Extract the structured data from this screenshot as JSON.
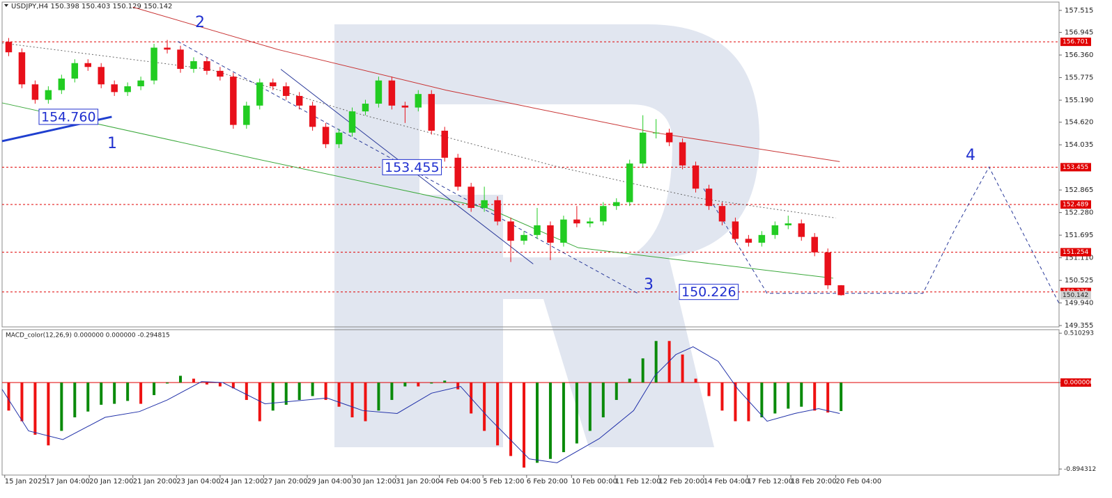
{
  "chart_data": [
    {
      "type": "candlestick",
      "title": "USDJPY,H4  150.398 150.403 150.129 150.142",
      "open": [
        156.7,
        156.43,
        155.6,
        155.2,
        155.45,
        155.75,
        156.15,
        156.05,
        155.6,
        155.4,
        155.55,
        155.7,
        156.55,
        156.5,
        156.0,
        156.2,
        155.95,
        155.8,
        154.55,
        155.05,
        155.65,
        155.55,
        155.3,
        155.05,
        154.5,
        154.05,
        154.35,
        154.9,
        155.1,
        155.7,
        155.05,
        155.0,
        155.35,
        154.4,
        153.7,
        152.95,
        152.4,
        152.6,
        152.05,
        151.55,
        151.7,
        151.95,
        151.5,
        152.1,
        152.0,
        152.05,
        152.45,
        152.55,
        153.55,
        154.35,
        154.35,
        154.1,
        153.5,
        152.9,
        152.45,
        152.05,
        151.6,
        151.5,
        151.7,
        151.95,
        152.0,
        151.65,
        151.25,
        150.398
      ],
      "high": [
        156.8,
        156.53,
        155.7,
        155.55,
        155.85,
        156.25,
        156.25,
        156.15,
        155.7,
        155.65,
        155.8,
        156.65,
        156.75,
        156.6,
        156.3,
        156.3,
        156.05,
        155.9,
        155.15,
        155.75,
        155.75,
        155.65,
        155.4,
        155.15,
        154.6,
        154.45,
        155.0,
        155.2,
        155.8,
        155.8,
        155.15,
        155.45,
        155.45,
        154.5,
        153.8,
        153.05,
        152.95,
        152.7,
        152.15,
        151.8,
        152.4,
        152.05,
        152.2,
        152.45,
        152.15,
        152.55,
        152.65,
        153.65,
        154.8,
        154.7,
        154.45,
        154.2,
        153.6,
        153.0,
        152.55,
        152.15,
        151.7,
        151.8,
        152.05,
        152.2,
        152.1,
        151.75,
        151.35,
        150.403
      ],
      "low": [
        156.33,
        155.5,
        155.1,
        155.1,
        155.35,
        155.65,
        155.95,
        155.5,
        155.3,
        155.3,
        155.45,
        155.6,
        156.4,
        155.9,
        155.9,
        155.85,
        155.7,
        154.45,
        154.45,
        154.95,
        155.45,
        155.2,
        154.95,
        154.4,
        153.95,
        153.95,
        154.25,
        154.8,
        155.0,
        154.95,
        154.6,
        154.9,
        154.3,
        153.6,
        152.85,
        152.3,
        152.3,
        151.95,
        151.0,
        151.45,
        151.6,
        151.05,
        151.4,
        151.9,
        151.9,
        151.95,
        152.35,
        152.45,
        153.45,
        154.2,
        154.0,
        153.4,
        152.8,
        152.35,
        151.95,
        151.5,
        151.4,
        151.4,
        151.6,
        151.85,
        151.55,
        151.15,
        150.3,
        150.129
      ],
      "close": [
        156.43,
        155.6,
        155.2,
        155.45,
        155.75,
        156.15,
        156.05,
        155.6,
        155.4,
        155.55,
        155.7,
        156.55,
        156.5,
        156.0,
        156.2,
        155.95,
        155.8,
        154.55,
        155.05,
        155.65,
        155.55,
        155.3,
        155.05,
        154.5,
        154.05,
        154.35,
        154.9,
        155.1,
        155.7,
        155.05,
        155.0,
        155.35,
        154.4,
        153.7,
        152.95,
        152.4,
        152.6,
        152.05,
        151.55,
        151.7,
        151.95,
        151.5,
        152.1,
        152.0,
        152.05,
        152.45,
        152.55,
        153.55,
        154.35,
        154.35,
        154.1,
        153.5,
        152.9,
        152.45,
        152.05,
        151.6,
        151.5,
        151.7,
        151.95,
        152.0,
        151.65,
        151.25,
        150.398,
        150.142
      ],
      "up_color": "#22cc22",
      "down_color": "#e8101a",
      "xlim": [
        -0.5,
        79.5
      ],
      "xticks": [
        {
          "value": -0.3,
          "label": "15 Jan 2025"
        },
        {
          "value": 2.8,
          "label": "17 Jan 04:00"
        },
        {
          "value": 6.1,
          "label": "20 Jan 12:00"
        },
        {
          "value": 9.4,
          "label": "21 Jan 20:00"
        },
        {
          "value": 12.7,
          "label": "23 Jan 04:00"
        },
        {
          "value": 16.0,
          "label": "24 Jan 12:00"
        },
        {
          "value": 19.3,
          "label": "27 Jan 20:00"
        },
        {
          "value": 22.6,
          "label": "29 Jan 04:00"
        },
        {
          "value": 26.0,
          "label": "30 Jan 12:00"
        },
        {
          "value": 29.3,
          "label": "31 Jan 20:00"
        },
        {
          "value": 32.6,
          "label": "4 Feb 04:00"
        },
        {
          "value": 35.9,
          "label": "5 Feb 12:00"
        },
        {
          "value": 39.2,
          "label": "6 Feb 20:00"
        },
        {
          "value": 42.6,
          "label": "10 Feb 00:00"
        },
        {
          "value": 45.9,
          "label": "11 Feb 12:00"
        },
        {
          "value": 49.2,
          "label": "12 Feb 20:00"
        },
        {
          "value": 52.6,
          "label": "14 Feb 04:00"
        },
        {
          "value": 55.9,
          "label": "17 Feb 12:00"
        },
        {
          "value": 59.2,
          "label": "18 Feb 20:00"
        },
        {
          "value": 62.6,
          "label": "20 Feb 04:00"
        }
      ],
      "ylim": [
        149.32,
        157.73
      ],
      "yticks": [
        157.515,
        156.945,
        {
          "value": 156.36,
          "label": "156.360"
        },
        155.775,
        {
          "value": 155.19,
          "label": "155.190"
        },
        {
          "value": 154.62,
          "label": "154.620"
        },
        154.035,
        152.865,
        {
          "value": 152.28,
          "label": "152.280"
        },
        151.695,
        {
          "value": 151.11,
          "label": "151.110"
        },
        150.525,
        {
          "value": 149.94,
          "label": "149.940"
        },
        149.355
      ],
      "levels": [
        156.701,
        153.455,
        152.489,
        151.254,
        150.226
      ],
      "level_color": "#e00000",
      "last_price": 150.142,
      "series": [
        {
          "color": "#c83232",
          "style": "solid",
          "x": [
            9.4,
            20.4,
            33.1,
            48.9,
            62.9
          ],
          "values": [
            157.6,
            156.5,
            155.45,
            154.35,
            153.6
          ]
        },
        {
          "color": "#3aa83a",
          "style": "solid",
          "x": [
            -0.5,
            18.6,
            36.3,
            43.1,
            52.1,
            62.4
          ],
          "values": [
            155.12,
            153.68,
            152.39,
            151.37,
            151.0,
            150.58
          ]
        },
        {
          "color": "#666666",
          "style": "dotted",
          "x": [
            -0.5,
            15.2,
            25.7,
            41.5,
            52.1,
            62.6
          ],
          "values": [
            156.67,
            155.99,
            154.91,
            153.47,
            152.66,
            152.14
          ]
        },
        {
          "color": "#1f3fcf",
          "style": "thick",
          "x": [
            -0.5,
            7.8
          ],
          "values": [
            154.13,
            154.76
          ]
        },
        {
          "color": "#2a3a9a",
          "style": "solid",
          "x": [
            20.6,
            39.7
          ],
          "values": [
            155.99,
            150.95
          ]
        },
        {
          "color": "#2a3a9a",
          "style": "dashed",
          "x": [
            12.8,
            47.6
          ],
          "values": [
            156.71,
            150.19
          ]
        },
        {
          "color": "#2a3a9a",
          "style": "dashed",
          "x": [
            52.6,
            57.4,
            69.2,
            71.6,
            74.2,
            79.5
          ],
          "values": [
            152.9,
            150.19,
            150.19,
            151.84,
            153.46,
            149.93
          ]
        }
      ],
      "annotations": [
        {
          "value": 154.76,
          "label": "154.760"
        },
        {
          "value": 153.455,
          "label": "153.455"
        },
        {
          "value": 150.226,
          "label": "150.226"
        }
      ],
      "wave_labels": [
        "1",
        "2",
        "3",
        "4"
      ]
    },
    {
      "type": "macd",
      "title": "MACD_color(12,26,9) 0.000000 0.000000 -0.294815",
      "values": [
        -0.29,
        -0.4,
        -0.54,
        -0.65,
        -0.5,
        -0.36,
        -0.3,
        -0.23,
        -0.22,
        -0.19,
        -0.22,
        -0.13,
        -0.01,
        0.07,
        0.04,
        -0.02,
        -0.04,
        -0.06,
        -0.18,
        -0.4,
        -0.29,
        -0.23,
        -0.18,
        -0.14,
        -0.18,
        -0.25,
        -0.36,
        -0.4,
        -0.29,
        -0.18,
        -0.04,
        -0.04,
        -0.01,
        0.02,
        -0.07,
        -0.32,
        -0.5,
        -0.65,
        -0.76,
        -0.88,
        -0.83,
        -0.79,
        -0.72,
        -0.63,
        -0.5,
        -0.36,
        -0.18,
        0.04,
        0.25,
        0.43,
        0.43,
        0.29,
        0.04,
        -0.14,
        -0.29,
        -0.4,
        -0.4,
        -0.36,
        -0.32,
        -0.27,
        -0.25,
        -0.29,
        -0.31,
        -0.294815
      ],
      "up_color": "#0a8a0a",
      "down_color": "#ee1111",
      "signal": {
        "color": "#1f2fa8",
        "x": [
          -0.5,
          1.5,
          4.1,
          7.3,
          9.9,
          12.0,
          14.6,
          16.2,
          19.4,
          24.1,
          26.8,
          29.4,
          32.0,
          34.2,
          36.3,
          39.4,
          41.5,
          44.7,
          47.3,
          48.9,
          50.5,
          51.8,
          53.7,
          55.2,
          57.4,
          59.5,
          61.3,
          62.9
        ],
        "values": [
          -0.07,
          -0.5,
          -0.59,
          -0.36,
          -0.3,
          -0.18,
          0.01,
          0.0,
          -0.22,
          -0.16,
          -0.29,
          -0.32,
          -0.11,
          -0.04,
          -0.36,
          -0.79,
          -0.83,
          -0.58,
          -0.29,
          0.07,
          0.29,
          0.37,
          0.22,
          -0.07,
          -0.4,
          -0.32,
          -0.27,
          -0.32
        ]
      },
      "ylim": [
        -0.957,
        0.547
      ],
      "yticks": [
        0.510293,
        {
          "value": 0,
          "label": "0.000000"
        },
        -0.894312
      ]
    }
  ]
}
